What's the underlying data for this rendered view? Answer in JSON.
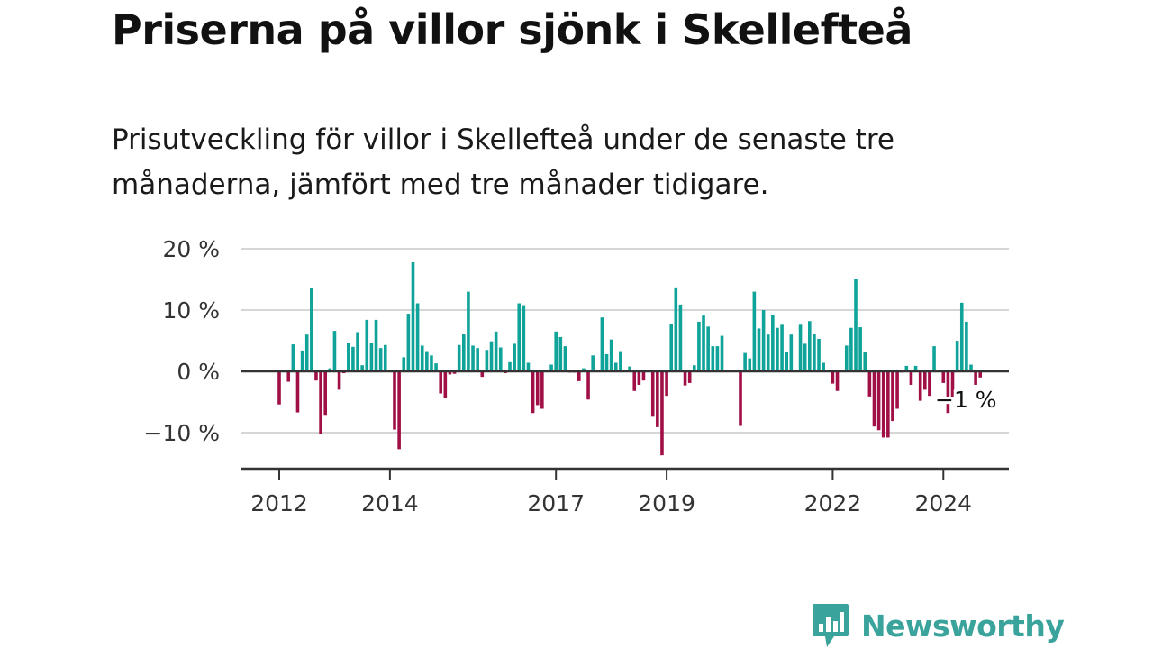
{
  "title": "Priserna på villor sjönk i Skellefteå",
  "subtitle": "Prisutveckling för villor i Skellefteå under de senaste tre månaderna, jämfört med tre månader tidigare.",
  "brand": "Newsworthy",
  "colors": {
    "positive": "#0fa39a",
    "negative": "#a10f47",
    "grid": "#d6d6d6",
    "axis": "#333333",
    "brand": "#3aa39b"
  },
  "chart_data": {
    "type": "bar",
    "title": "Priserna på villor sjönk i Skellefteå",
    "xlabel": "",
    "ylabel": "",
    "ylim": [
      -15,
      20
    ],
    "grid": true,
    "y_ticks": [
      {
        "value": 20,
        "label": "20 %"
      },
      {
        "value": 10,
        "label": "10 %"
      },
      {
        "value": 0,
        "label": "0 %"
      },
      {
        "value": -10,
        "label": "−10 %"
      }
    ],
    "x_ticks": [
      {
        "label": "2012",
        "index": 0
      },
      {
        "label": "2014",
        "index": 24
      },
      {
        "label": "2017",
        "index": 60
      },
      {
        "label": "2019",
        "index": 84
      },
      {
        "label": "2022",
        "index": 120
      },
      {
        "label": "2024",
        "index": 144
      }
    ],
    "start_month": "2012-01",
    "annotation": {
      "label": "−1 %",
      "index": 150
    },
    "values": [
      -5.4,
      0.2,
      -1.7,
      4.4,
      -6.7,
      3.4,
      6.0,
      13.6,
      -1.5,
      -10.2,
      -7.1,
      0.5,
      6.6,
      -3.0,
      -0.3,
      4.6,
      4.0,
      6.4,
      1.0,
      8.4,
      4.6,
      8.4,
      3.8,
      4.3,
      0.2,
      -9.5,
      -12.7,
      2.3,
      9.4,
      17.8,
      11.1,
      4.2,
      3.3,
      2.6,
      1.3,
      -3.6,
      -4.4,
      -0.5,
      -0.4,
      4.3,
      6.1,
      13.0,
      4.2,
      3.8,
      -0.9,
      3.5,
      4.9,
      6.5,
      3.9,
      -0.3,
      1.5,
      4.5,
      11.1,
      10.8,
      1.4,
      -6.8,
      -5.5,
      -6.1,
      0.3,
      1.1,
      6.5,
      5.6,
      4.1,
      -0.2,
      -0.2,
      -1.6,
      0.5,
      -4.6,
      2.6,
      0.2,
      8.8,
      2.8,
      5.2,
      1.4,
      3.3,
      0.3,
      0.8,
      -3.2,
      -2.2,
      -1.5,
      0.0,
      -7.4,
      -9.1,
      -13.7,
      -4.0,
      7.8,
      13.7,
      10.9,
      -2.3,
      -1.9,
      1.0,
      8.1,
      9.1,
      7.3,
      4.1,
      4.1,
      5.8,
      0.0,
      0.0,
      0.0,
      -8.9,
      3.0,
      2.1,
      13.0,
      7.0,
      10.0,
      6.0,
      9.2,
      7.1,
      7.6,
      3.1,
      6.0,
      0.2,
      7.6,
      4.5,
      8.2,
      6.1,
      5.3,
      1.4,
      0.2,
      -2.0,
      -3.2,
      0.0,
      4.2,
      7.1,
      15.0,
      7.2,
      3.1,
      -4.1,
      -9.0,
      -9.6,
      -10.8,
      -10.8,
      -8.1,
      -6.1,
      -0.2,
      0.9,
      -2.2,
      0.9,
      -4.8,
      -3.0,
      -4.0,
      4.1,
      0.0,
      -1.9,
      -6.8,
      -4.2,
      5.0,
      11.2,
      8.1,
      1.1,
      -2.2,
      -1.0
    ]
  }
}
